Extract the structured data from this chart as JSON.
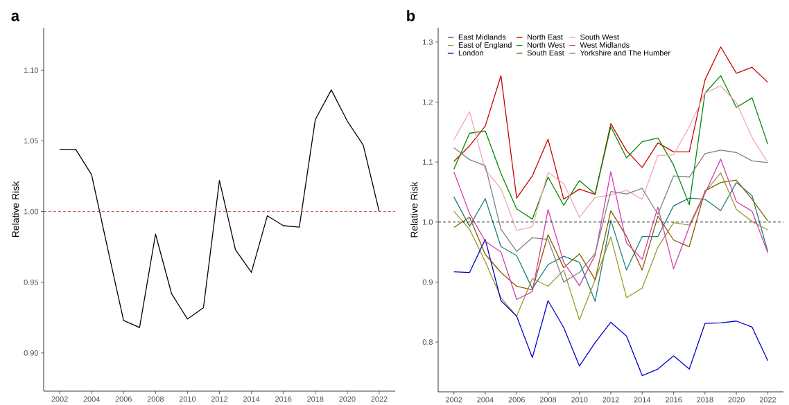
{
  "chart_data": [
    {
      "type": "line",
      "title": "a",
      "ylabel": "Relative Risk",
      "color": "#000000",
      "x": [
        2002,
        2003,
        2004,
        2005,
        2006,
        2007,
        2008,
        2009,
        2010,
        2011,
        2012,
        2013,
        2014,
        2015,
        2016,
        2017,
        2018,
        2019,
        2020,
        2021,
        2022
      ],
      "values": [
        1.044,
        1.044,
        1.026,
        0.974,
        0.923,
        0.918,
        0.984,
        0.942,
        0.924,
        0.932,
        1.022,
        0.973,
        0.957,
        0.997,
        0.99,
        0.989,
        1.065,
        1.086,
        1.064,
        1.047,
        1.0
      ],
      "xlim": [
        2001,
        2023
      ],
      "ylim": [
        0.873,
        1.13
      ],
      "xticks": [
        2002,
        2004,
        2006,
        2008,
        2010,
        2012,
        2014,
        2016,
        2018,
        2020,
        2022
      ],
      "yticks": [
        {
          "value": 0.9,
          "label": "0.90"
        },
        {
          "value": 0.95,
          "label": "0.95"
        },
        {
          "value": 1.0,
          "label": "1.00"
        },
        {
          "value": 1.05,
          "label": "1.05"
        },
        {
          "value": 1.1,
          "label": "1.10"
        }
      ],
      "ref_lines": [
        {
          "axis": "y",
          "value": 1,
          "color": "#e03c3c",
          "line_style": "dashed"
        }
      ]
    },
    {
      "type": "line",
      "title": "b",
      "ylabel": "Relative Risk",
      "legend": "top left",
      "x": [
        2002,
        2003,
        2004,
        2005,
        2006,
        2007,
        2008,
        2009,
        2010,
        2011,
        2012,
        2013,
        2014,
        2015,
        2016,
        2017,
        2018,
        2019,
        2020,
        2021,
        2022
      ],
      "series": [
        {
          "name": "East Midlands",
          "color": "#1b7f7a",
          "values": [
            1.042,
            0.993,
            1.039,
            0.959,
            0.944,
            0.889,
            0.929,
            0.943,
            0.933,
            0.868,
            1.003,
            0.92,
            0.976,
            0.976,
            1.027,
            1.04,
            1.038,
            1.019,
            1.066,
            1.044,
            0.951
          ]
        },
        {
          "name": "East of England",
          "color": "#9a9a2a",
          "values": [
            1.018,
            0.988,
            0.934,
            0.874,
            0.843,
            0.906,
            0.893,
            0.92,
            0.837,
            0.904,
            0.975,
            0.874,
            0.89,
            0.958,
            0.999,
            0.995,
            1.05,
            1.082,
            1.021,
            1.001,
            0.987
          ]
        },
        {
          "name": "London",
          "color": "#0000cc",
          "values": [
            0.917,
            0.916,
            0.971,
            0.869,
            0.843,
            0.774,
            0.869,
            0.824,
            0.76,
            0.799,
            0.833,
            0.81,
            0.744,
            0.755,
            0.777,
            0.755,
            0.831,
            0.832,
            0.835,
            0.825,
            0.769
          ]
        },
        {
          "name": "North East",
          "color": "#cc0000",
          "values": [
            1.101,
            1.127,
            1.16,
            1.244,
            1.04,
            1.077,
            1.138,
            1.038,
            1.055,
            1.046,
            1.164,
            1.119,
            1.091,
            1.132,
            1.117,
            1.117,
            1.237,
            1.292,
            1.248,
            1.258,
            1.233
          ]
        },
        {
          "name": "North West",
          "color": "#008800",
          "values": [
            1.088,
            1.148,
            1.152,
            1.081,
            1.022,
            1.005,
            1.075,
            1.028,
            1.069,
            1.047,
            1.159,
            1.107,
            1.134,
            1.14,
            1.095,
            1.029,
            1.215,
            1.244,
            1.191,
            1.207,
            1.13
          ]
        },
        {
          "name": "South East",
          "color": "#8b5a00",
          "values": [
            0.991,
            1.008,
            0.946,
            0.916,
            0.893,
            0.887,
            0.979,
            0.924,
            0.947,
            0.904,
            1.019,
            0.976,
            0.92,
            1.01,
            0.97,
            0.959,
            1.052,
            1.066,
            1.07,
            1.038,
            1.002
          ]
        },
        {
          "name": "South West",
          "color": "#f2a7b6",
          "values": [
            1.137,
            1.184,
            1.087,
            1.056,
            0.986,
            0.992,
            1.083,
            1.064,
            1.008,
            1.041,
            1.045,
            1.053,
            1.038,
            1.111,
            1.112,
            1.159,
            1.215,
            1.227,
            1.199,
            1.141,
            1.099
          ]
        },
        {
          "name": "West Midlands",
          "color": "#d63cb0",
          "values": [
            1.084,
            1.014,
            0.968,
            0.95,
            0.871,
            0.884,
            1.021,
            0.933,
            0.894,
            0.945,
            1.084,
            0.965,
            0.938,
            1.025,
            0.922,
            0.992,
            1.048,
            1.105,
            1.034,
            1.018,
            0.949
          ]
        },
        {
          "name": "Yorkshire and The Humber",
          "color": "#808080",
          "values": [
            1.124,
            1.104,
            1.094,
            0.988,
            0.951,
            0.974,
            0.971,
            0.9,
            0.916,
            0.948,
            1.051,
            1.047,
            1.056,
            1.013,
            1.077,
            1.075,
            1.114,
            1.12,
            1.116,
            1.102,
            1.099
          ]
        }
      ],
      "xlim": [
        2001,
        2023
      ],
      "ylim": [
        0.717,
        1.324
      ],
      "xticks": [
        2002,
        2004,
        2006,
        2008,
        2010,
        2012,
        2014,
        2016,
        2018,
        2020,
        2022
      ],
      "yticks": [
        0.8,
        0.9,
        {
          "value": 1.0,
          "label": "1.0"
        },
        1.1,
        1.2,
        1.3
      ],
      "ref_lines": [
        {
          "axis": "y",
          "value": 1,
          "color": "#000000",
          "line_style": "dashed"
        }
      ]
    }
  ]
}
